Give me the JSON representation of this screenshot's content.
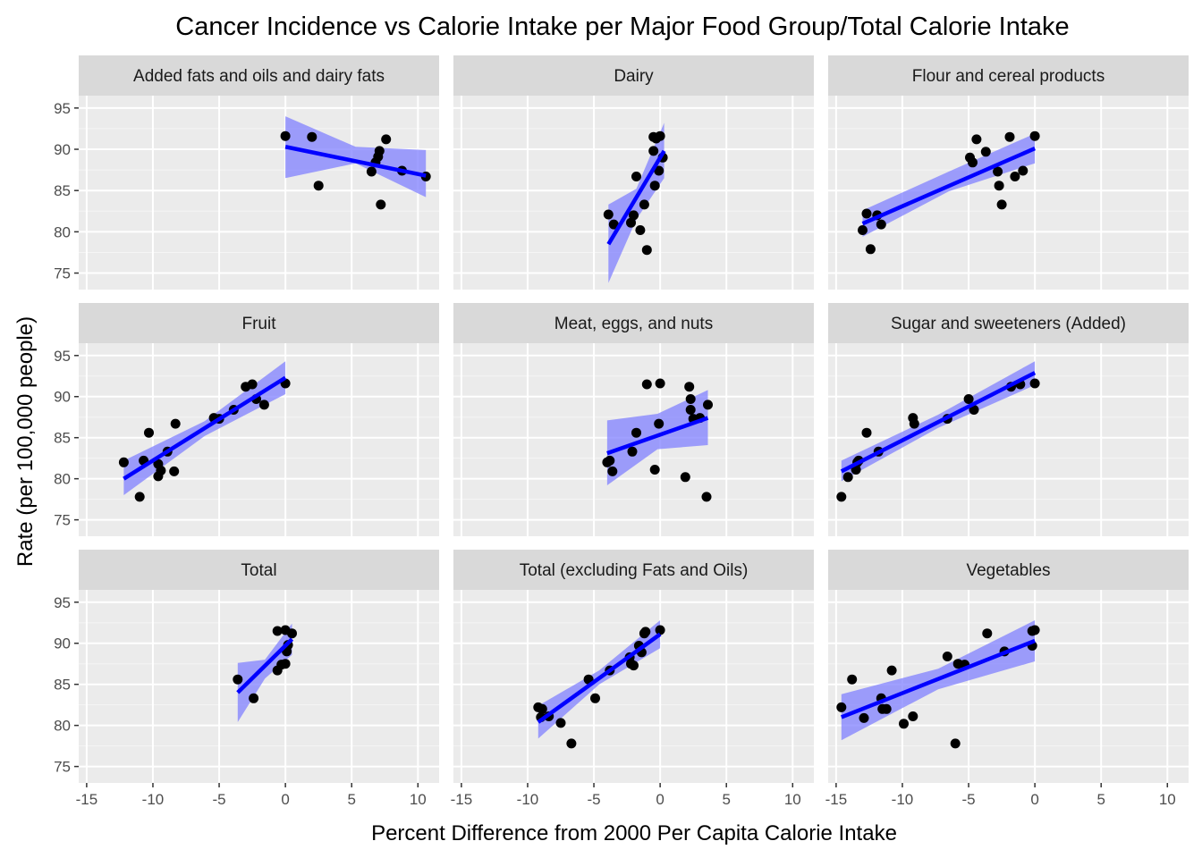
{
  "chart_data": {
    "type": "scatter",
    "title": "Cancer Incidence vs Calorie Intake per Major Food Group/Total Calorie Intake",
    "xlabel": "Percent Difference from 2000 Per Capita Calorie Intake",
    "ylabel": "Rate (per 100,000 people)",
    "xlim": [
      -15.6,
      11.6
    ],
    "ylim": [
      73,
      96.5
    ],
    "x_ticks": [
      -15,
      -10,
      -5,
      0,
      5,
      10
    ],
    "y_ticks": [
      75,
      80,
      85,
      90,
      95
    ],
    "grid": true,
    "point_color": "#000000",
    "line_color": "#0000ff",
    "band_color": "#8080ff",
    "panel_background": "#ebebeb",
    "strip_background": "#d9d9d9",
    "facets": [
      {
        "label": "Added fats and oils and dairy fats",
        "points": [
          [
            0,
            91.6
          ],
          [
            2,
            91.5
          ],
          [
            2.5,
            85.6
          ],
          [
            6.5,
            87.3
          ],
          [
            6.8,
            88.4
          ],
          [
            7,
            89.1
          ],
          [
            7.1,
            89.8
          ],
          [
            7.2,
            83.3
          ],
          [
            7.6,
            91.2
          ],
          [
            8.8,
            87.4
          ],
          [
            10.6,
            86.7
          ]
        ],
        "fit": {
          "x0": 0,
          "x1": 10.6,
          "y0": 90.3,
          "y1": 86.8,
          "ci0": [
            86.5,
            94.0
          ],
          "ci1": [
            84.2,
            89.9
          ],
          "cimid": [
            88.3,
            90.3
          ]
        }
      },
      {
        "label": "Dairy",
        "points": [
          [
            -3.9,
            82.1
          ],
          [
            -3.5,
            80.9
          ],
          [
            -2.2,
            81.1
          ],
          [
            -2.0,
            82.0
          ],
          [
            -1.8,
            86.7
          ],
          [
            -1.5,
            80.2
          ],
          [
            -1.2,
            83.3
          ],
          [
            -1.0,
            77.8
          ],
          [
            -0.5,
            91.5
          ],
          [
            -0.5,
            89.8
          ],
          [
            -0.3,
            91.3
          ],
          [
            -0.4,
            85.6
          ],
          [
            0,
            91.6
          ],
          [
            -0.1,
            87.4
          ],
          [
            0.2,
            89.0
          ]
        ],
        "fit": {
          "x0": -3.9,
          "x1": 0.3,
          "y0": 78.5,
          "y1": 89.8,
          "ci0": [
            73.8,
            83.3
          ],
          "ci1": [
            86.5,
            93.2
          ],
          "cimid": [
            81.5,
            85.2
          ]
        }
      },
      {
        "label": "Flour and cereal products",
        "points": [
          [
            -13.0,
            80.2
          ],
          [
            -12.7,
            82.2
          ],
          [
            -12.4,
            77.9
          ],
          [
            -11.9,
            82.0
          ],
          [
            -11.6,
            80.9
          ],
          [
            -4.9,
            89.0
          ],
          [
            -4.7,
            88.4
          ],
          [
            -4.4,
            91.2
          ],
          [
            -3.7,
            89.7
          ],
          [
            -2.8,
            87.3
          ],
          [
            -2.7,
            85.6
          ],
          [
            -2.5,
            83.3
          ],
          [
            -1.9,
            91.5
          ],
          [
            -1.5,
            86.7
          ],
          [
            -0.9,
            87.4
          ],
          [
            0,
            91.6
          ]
        ],
        "fit": {
          "x0": -13.0,
          "x1": 0,
          "y0": 81.0,
          "y1": 90.1,
          "ci0": [
            79.4,
            82.6
          ],
          "ci1": [
            88.3,
            91.9
          ],
          "cimid": [
            84.9,
            87.3
          ]
        }
      },
      {
        "label": "Fruit",
        "points": [
          [
            -12.2,
            82.0
          ],
          [
            -11.0,
            77.8
          ],
          [
            -10.7,
            82.2
          ],
          [
            -10.3,
            85.6
          ],
          [
            -9.6,
            81.8
          ],
          [
            -9.6,
            80.3
          ],
          [
            -9.4,
            81.0
          ],
          [
            -8.9,
            83.3
          ],
          [
            -8.3,
            86.7
          ],
          [
            -8.4,
            80.9
          ],
          [
            -5.4,
            87.4
          ],
          [
            -5.0,
            87.3
          ],
          [
            -3.9,
            88.4
          ],
          [
            -3.0,
            91.2
          ],
          [
            -2.5,
            91.5
          ],
          [
            -2.2,
            89.7
          ],
          [
            -1.6,
            89.0
          ],
          [
            0,
            91.6
          ]
        ],
        "fit": {
          "x0": -12.2,
          "x1": 0,
          "y0": 80.0,
          "y1": 92.3,
          "ci0": [
            78.0,
            82.2
          ],
          "ci1": [
            90.3,
            94.3
          ],
          "cimid": [
            85.2,
            87.0
          ]
        }
      },
      {
        "label": "Meat, eggs, and nuts",
        "points": [
          [
            -4.0,
            82.0
          ],
          [
            -3.8,
            82.2
          ],
          [
            -3.6,
            80.9
          ],
          [
            -2.1,
            83.3
          ],
          [
            -1.8,
            85.6
          ],
          [
            -1.0,
            91.5
          ],
          [
            -0.4,
            81.1
          ],
          [
            -0.1,
            86.7
          ],
          [
            0,
            91.6
          ],
          [
            1.9,
            80.2
          ],
          [
            2.2,
            91.2
          ],
          [
            2.3,
            88.4
          ],
          [
            2.3,
            89.7
          ],
          [
            2.5,
            87.3
          ],
          [
            3.0,
            87.4
          ],
          [
            3.5,
            77.8
          ],
          [
            3.6,
            89.0
          ]
        ],
        "fit": {
          "x0": -4.0,
          "x1": 3.6,
          "y0": 83.1,
          "y1": 87.4,
          "ci0": [
            79.2,
            87.1
          ],
          "ci1": [
            84.1,
            90.8
          ],
          "cimid": [
            83.6,
            87.9
          ]
        }
      },
      {
        "label": "Sugar and sweeteners (Added)",
        "points": [
          [
            -14.6,
            77.8
          ],
          [
            -14.1,
            80.2
          ],
          [
            -13.5,
            81.1
          ],
          [
            -13.4,
            82.0
          ],
          [
            -13.3,
            82.2
          ],
          [
            -12.7,
            85.6
          ],
          [
            -11.8,
            83.3
          ],
          [
            -9.2,
            87.4
          ],
          [
            -9.1,
            86.7
          ],
          [
            -6.6,
            87.3
          ],
          [
            -5.0,
            89.7
          ],
          [
            -4.6,
            88.4
          ],
          [
            -1.8,
            91.2
          ],
          [
            -1.1,
            91.5
          ],
          [
            0,
            91.6
          ]
        ],
        "fit": {
          "x0": -14.6,
          "x1": 0,
          "y0": 80.9,
          "y1": 92.9,
          "ci0": [
            79.7,
            82.2
          ],
          "ci1": [
            91.4,
            94.3
          ],
          "cimid": [
            86.2,
            87.8
          ]
        }
      },
      {
        "label": "Total",
        "points": [
          [
            -3.6,
            85.6
          ],
          [
            -2.4,
            83.3
          ],
          [
            -0.6,
            91.5
          ],
          [
            -0.6,
            86.7
          ],
          [
            -0.3,
            87.4
          ],
          [
            0,
            91.6
          ],
          [
            0,
            87.5
          ],
          [
            0.1,
            89.0
          ],
          [
            0.2,
            89.8
          ],
          [
            0.5,
            91.2
          ]
        ],
        "fit": {
          "x0": -3.6,
          "x1": 0.5,
          "y0": 84.0,
          "y1": 90.5,
          "ci0": [
            80.4,
            87.6
          ],
          "ci1": [
            88.6,
            92.4
          ],
          "cimid": [
            85.7,
            88.0
          ]
        }
      },
      {
        "label": "Total (excluding Fats and Oils)",
        "points": [
          [
            -9.2,
            82.2
          ],
          [
            -8.9,
            82.0
          ],
          [
            -9.0,
            81.0
          ],
          [
            -8.4,
            81.1
          ],
          [
            -7.5,
            80.3
          ],
          [
            -6.7,
            77.8
          ],
          [
            -5.4,
            85.6
          ],
          [
            -4.9,
            83.3
          ],
          [
            -3.8,
            86.7
          ],
          [
            -2.3,
            88.3
          ],
          [
            -2.2,
            87.5
          ],
          [
            -2.0,
            87.3
          ],
          [
            -1.6,
            89.7
          ],
          [
            -1.4,
            88.9
          ],
          [
            -1.2,
            91.2
          ],
          [
            -1.1,
            91.4
          ],
          [
            0,
            91.6
          ]
        ],
        "fit": {
          "x0": -9.2,
          "x1": 0,
          "y0": 80.4,
          "y1": 91.1,
          "ci0": [
            78.4,
            82.4
          ],
          "ci1": [
            89.4,
            92.8
          ],
          "cimid": [
            85.0,
            86.7
          ]
        }
      },
      {
        "label": "Vegetables",
        "points": [
          [
            -14.6,
            82.2
          ],
          [
            -13.8,
            85.6
          ],
          [
            -12.9,
            80.9
          ],
          [
            -11.6,
            83.3
          ],
          [
            -11.5,
            82.0
          ],
          [
            -11.2,
            82.0
          ],
          [
            -10.8,
            86.7
          ],
          [
            -9.9,
            80.2
          ],
          [
            -9.2,
            81.1
          ],
          [
            -6.6,
            88.4
          ],
          [
            -6.0,
            77.8
          ],
          [
            -5.8,
            87.5
          ],
          [
            -5.3,
            87.4
          ],
          [
            -3.6,
            91.2
          ],
          [
            -2.3,
            89.0
          ],
          [
            -0.2,
            91.5
          ],
          [
            -0.2,
            89.7
          ],
          [
            0,
            91.6
          ]
        ],
        "fit": {
          "x0": -14.6,
          "x1": 0,
          "y0": 81.0,
          "y1": 90.3,
          "ci0": [
            78.2,
            83.8
          ],
          "ci1": [
            87.8,
            92.8
          ],
          "cimid": [
            84.4,
            86.9
          ]
        }
      }
    ]
  }
}
